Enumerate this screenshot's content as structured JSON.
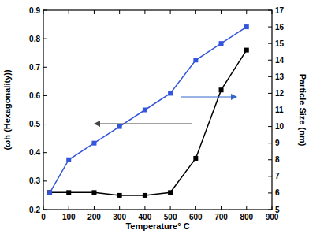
{
  "chart_data": {
    "type": "line",
    "x_label": "Temperature° C",
    "y_label": "(ωh (Hexagonality))",
    "y2_label": "Particle Size (nm)",
    "x": [
      25,
      100,
      200,
      300,
      400,
      500,
      600,
      700,
      800
    ],
    "series": [
      {
        "name": "(ωh (Hexagonality))",
        "color": "#000000",
        "marker": "square",
        "values": [
          0.26,
          0.26,
          0.26,
          0.25,
          0.25,
          0.26,
          0.38,
          0.62,
          0.76
        ]
      },
      {
        "name": "Particle Size (nm)",
        "color": "#3355dd",
        "marker": "square",
        "axis": "y2",
        "values": [
          6,
          8,
          9,
          10,
          11,
          12,
          14,
          15,
          16
        ]
      }
    ],
    "xlim": [
      0,
      900
    ],
    "xticks": [
      0,
      100,
      200,
      300,
      400,
      500,
      600,
      700,
      800,
      900
    ],
    "ylim": [
      0.2,
      0.9
    ],
    "yticks": [
      0.2,
      0.3,
      0.4,
      0.5,
      0.6,
      0.7,
      0.8,
      0.9
    ],
    "y2lim": [
      5,
      17
    ],
    "y2ticks": [
      5,
      6,
      7,
      8,
      9,
      10,
      11,
      12,
      13,
      14,
      15,
      16,
      17
    ],
    "grid": false
  }
}
